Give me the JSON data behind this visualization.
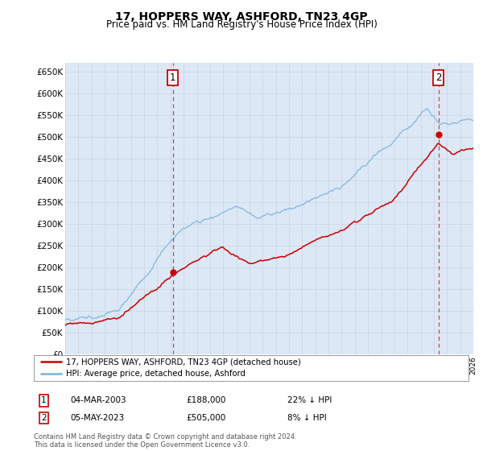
{
  "title": "17, HOPPERS WAY, ASHFORD, TN23 4GP",
  "subtitle": "Price paid vs. HM Land Registry's House Price Index (HPI)",
  "ylim": [
    0,
    670000
  ],
  "yticks": [
    0,
    50000,
    100000,
    150000,
    200000,
    250000,
    300000,
    350000,
    400000,
    450000,
    500000,
    550000,
    600000,
    650000
  ],
  "sale1_date": 2003.17,
  "sale1_price": 188000,
  "sale1_label": "1",
  "sale2_date": 2023.35,
  "sale2_price": 505000,
  "sale2_label": "2",
  "hpi_color": "#7ab3d9",
  "price_color": "#cc0000",
  "dashed_color": "#cc0000",
  "bg_color": "#ffffff",
  "grid_color": "#ccd8e8",
  "chart_bg": "#dce8f5",
  "legend_line1": "17, HOPPERS WAY, ASHFORD, TN23 4GP (detached house)",
  "legend_line2": "HPI: Average price, detached house, Ashford",
  "table_row1_num": "1",
  "table_row1_date": "04-MAR-2003",
  "table_row1_price": "£188,000",
  "table_row1_hpi": "22% ↓ HPI",
  "table_row2_num": "2",
  "table_row2_date": "05-MAY-2023",
  "table_row2_price": "£505,000",
  "table_row2_hpi": "8% ↓ HPI",
  "footer": "Contains HM Land Registry data © Crown copyright and database right 2024.\nThis data is licensed under the Open Government Licence v3.0.",
  "xmin": 1995,
  "xmax": 2026
}
